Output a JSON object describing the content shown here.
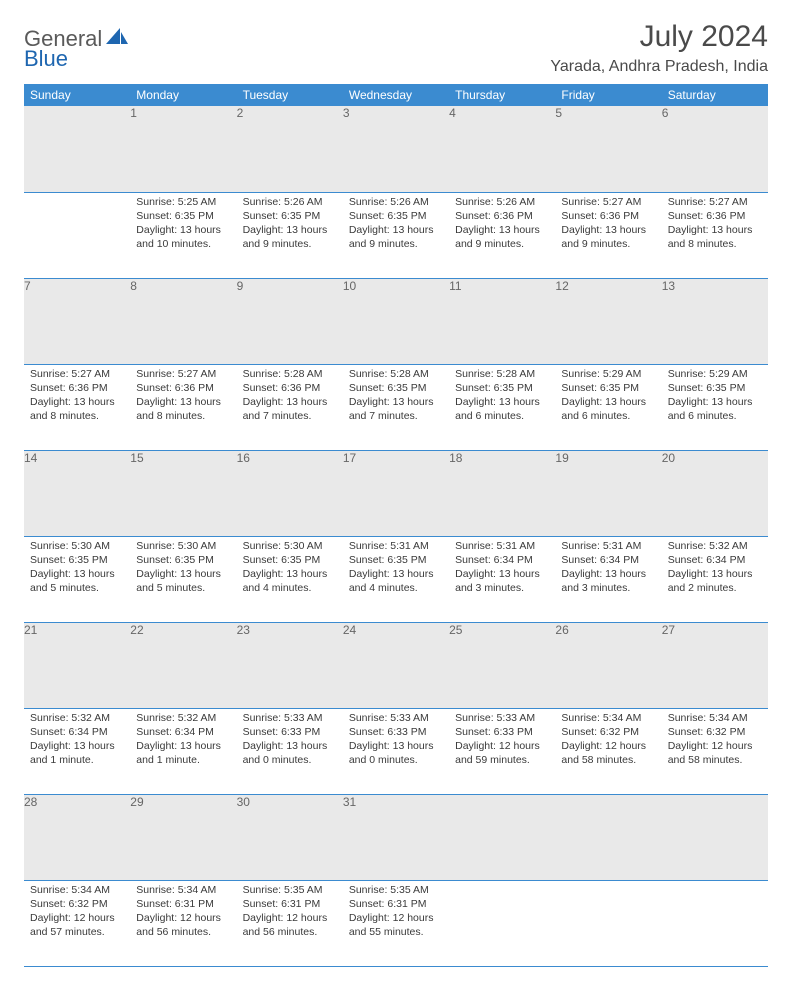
{
  "brand": {
    "word1": "General",
    "word2": "Blue"
  },
  "header": {
    "title": "July 2024",
    "location": "Yarada, Andhra Pradesh, India"
  },
  "colors": {
    "accent": "#3b8bd0",
    "daybar": "#e9e9e9",
    "text": "#3a3a3a",
    "headerText": "#ffffff"
  },
  "dayNames": [
    "Sunday",
    "Monday",
    "Tuesday",
    "Wednesday",
    "Thursday",
    "Friday",
    "Saturday"
  ],
  "weeks": [
    {
      "nums": [
        "",
        "1",
        "2",
        "3",
        "4",
        "5",
        "6"
      ],
      "cells": [
        null,
        {
          "sunrise": "Sunrise: 5:25 AM",
          "sunset": "Sunset: 6:35 PM",
          "day1": "Daylight: 13 hours",
          "day2": "and 10 minutes."
        },
        {
          "sunrise": "Sunrise: 5:26 AM",
          "sunset": "Sunset: 6:35 PM",
          "day1": "Daylight: 13 hours",
          "day2": "and 9 minutes."
        },
        {
          "sunrise": "Sunrise: 5:26 AM",
          "sunset": "Sunset: 6:35 PM",
          "day1": "Daylight: 13 hours",
          "day2": "and 9 minutes."
        },
        {
          "sunrise": "Sunrise: 5:26 AM",
          "sunset": "Sunset: 6:36 PM",
          "day1": "Daylight: 13 hours",
          "day2": "and 9 minutes."
        },
        {
          "sunrise": "Sunrise: 5:27 AM",
          "sunset": "Sunset: 6:36 PM",
          "day1": "Daylight: 13 hours",
          "day2": "and 9 minutes."
        },
        {
          "sunrise": "Sunrise: 5:27 AM",
          "sunset": "Sunset: 6:36 PM",
          "day1": "Daylight: 13 hours",
          "day2": "and 8 minutes."
        }
      ]
    },
    {
      "nums": [
        "7",
        "8",
        "9",
        "10",
        "11",
        "12",
        "13"
      ],
      "cells": [
        {
          "sunrise": "Sunrise: 5:27 AM",
          "sunset": "Sunset: 6:36 PM",
          "day1": "Daylight: 13 hours",
          "day2": "and 8 minutes."
        },
        {
          "sunrise": "Sunrise: 5:27 AM",
          "sunset": "Sunset: 6:36 PM",
          "day1": "Daylight: 13 hours",
          "day2": "and 8 minutes."
        },
        {
          "sunrise": "Sunrise: 5:28 AM",
          "sunset": "Sunset: 6:36 PM",
          "day1": "Daylight: 13 hours",
          "day2": "and 7 minutes."
        },
        {
          "sunrise": "Sunrise: 5:28 AM",
          "sunset": "Sunset: 6:35 PM",
          "day1": "Daylight: 13 hours",
          "day2": "and 7 minutes."
        },
        {
          "sunrise": "Sunrise: 5:28 AM",
          "sunset": "Sunset: 6:35 PM",
          "day1": "Daylight: 13 hours",
          "day2": "and 6 minutes."
        },
        {
          "sunrise": "Sunrise: 5:29 AM",
          "sunset": "Sunset: 6:35 PM",
          "day1": "Daylight: 13 hours",
          "day2": "and 6 minutes."
        },
        {
          "sunrise": "Sunrise: 5:29 AM",
          "sunset": "Sunset: 6:35 PM",
          "day1": "Daylight: 13 hours",
          "day2": "and 6 minutes."
        }
      ]
    },
    {
      "nums": [
        "14",
        "15",
        "16",
        "17",
        "18",
        "19",
        "20"
      ],
      "cells": [
        {
          "sunrise": "Sunrise: 5:30 AM",
          "sunset": "Sunset: 6:35 PM",
          "day1": "Daylight: 13 hours",
          "day2": "and 5 minutes."
        },
        {
          "sunrise": "Sunrise: 5:30 AM",
          "sunset": "Sunset: 6:35 PM",
          "day1": "Daylight: 13 hours",
          "day2": "and 5 minutes."
        },
        {
          "sunrise": "Sunrise: 5:30 AM",
          "sunset": "Sunset: 6:35 PM",
          "day1": "Daylight: 13 hours",
          "day2": "and 4 minutes."
        },
        {
          "sunrise": "Sunrise: 5:31 AM",
          "sunset": "Sunset: 6:35 PM",
          "day1": "Daylight: 13 hours",
          "day2": "and 4 minutes."
        },
        {
          "sunrise": "Sunrise: 5:31 AM",
          "sunset": "Sunset: 6:34 PM",
          "day1": "Daylight: 13 hours",
          "day2": "and 3 minutes."
        },
        {
          "sunrise": "Sunrise: 5:31 AM",
          "sunset": "Sunset: 6:34 PM",
          "day1": "Daylight: 13 hours",
          "day2": "and 3 minutes."
        },
        {
          "sunrise": "Sunrise: 5:32 AM",
          "sunset": "Sunset: 6:34 PM",
          "day1": "Daylight: 13 hours",
          "day2": "and 2 minutes."
        }
      ]
    },
    {
      "nums": [
        "21",
        "22",
        "23",
        "24",
        "25",
        "26",
        "27"
      ],
      "cells": [
        {
          "sunrise": "Sunrise: 5:32 AM",
          "sunset": "Sunset: 6:34 PM",
          "day1": "Daylight: 13 hours",
          "day2": "and 1 minute."
        },
        {
          "sunrise": "Sunrise: 5:32 AM",
          "sunset": "Sunset: 6:34 PM",
          "day1": "Daylight: 13 hours",
          "day2": "and 1 minute."
        },
        {
          "sunrise": "Sunrise: 5:33 AM",
          "sunset": "Sunset: 6:33 PM",
          "day1": "Daylight: 13 hours",
          "day2": "and 0 minutes."
        },
        {
          "sunrise": "Sunrise: 5:33 AM",
          "sunset": "Sunset: 6:33 PM",
          "day1": "Daylight: 13 hours",
          "day2": "and 0 minutes."
        },
        {
          "sunrise": "Sunrise: 5:33 AM",
          "sunset": "Sunset: 6:33 PM",
          "day1": "Daylight: 12 hours",
          "day2": "and 59 minutes."
        },
        {
          "sunrise": "Sunrise: 5:34 AM",
          "sunset": "Sunset: 6:32 PM",
          "day1": "Daylight: 12 hours",
          "day2": "and 58 minutes."
        },
        {
          "sunrise": "Sunrise: 5:34 AM",
          "sunset": "Sunset: 6:32 PM",
          "day1": "Daylight: 12 hours",
          "day2": "and 58 minutes."
        }
      ]
    },
    {
      "nums": [
        "28",
        "29",
        "30",
        "31",
        "",
        "",
        ""
      ],
      "cells": [
        {
          "sunrise": "Sunrise: 5:34 AM",
          "sunset": "Sunset: 6:32 PM",
          "day1": "Daylight: 12 hours",
          "day2": "and 57 minutes."
        },
        {
          "sunrise": "Sunrise: 5:34 AM",
          "sunset": "Sunset: 6:31 PM",
          "day1": "Daylight: 12 hours",
          "day2": "and 56 minutes."
        },
        {
          "sunrise": "Sunrise: 5:35 AM",
          "sunset": "Sunset: 6:31 PM",
          "day1": "Daylight: 12 hours",
          "day2": "and 56 minutes."
        },
        {
          "sunrise": "Sunrise: 5:35 AM",
          "sunset": "Sunset: 6:31 PM",
          "day1": "Daylight: 12 hours",
          "day2": "and 55 minutes."
        },
        null,
        null,
        null
      ]
    }
  ]
}
